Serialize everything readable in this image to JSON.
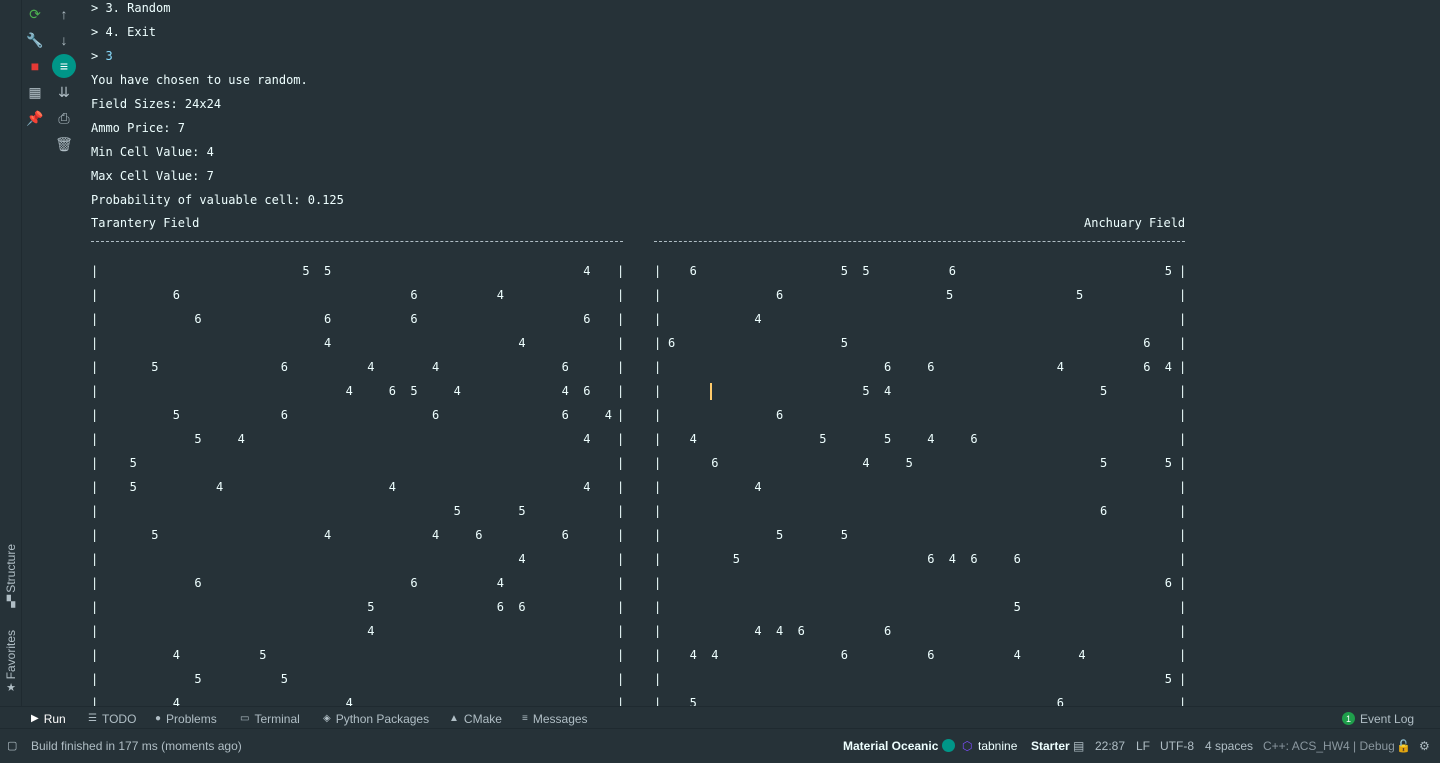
{
  "left_strip": {
    "structure_label": "Structure",
    "favorites_label": "Favorites",
    "favorites_icon": "star-icon"
  },
  "toolbar": {
    "col1": [
      {
        "name": "rerun-icon",
        "glyph": "⟳",
        "color": "#4caf50"
      },
      {
        "name": "wrench-icon",
        "glyph": "🔧",
        "color": "#b0bec5"
      },
      {
        "name": "stop-icon",
        "glyph": "■",
        "color": "#e53935"
      },
      {
        "name": "layout-icon",
        "glyph": "▦",
        "color": "#b0bec5"
      },
      {
        "name": "pin-icon",
        "glyph": "📌",
        "color": "#b0bec5"
      }
    ],
    "col2": [
      {
        "name": "arrow-up-icon",
        "glyph": "↑"
      },
      {
        "name": "arrow-down-icon",
        "glyph": "↓"
      },
      {
        "name": "soft-wrap-icon",
        "glyph": "≡",
        "active": true
      },
      {
        "name": "scroll-to-end-icon",
        "glyph": "⇊"
      },
      {
        "name": "print-icon",
        "glyph": "⎙"
      },
      {
        "name": "trash-icon",
        "glyph": "🗑"
      }
    ]
  },
  "console": {
    "lines": [
      {
        "text": "> 3. Random"
      },
      {
        "text": "> 4. Exit"
      },
      {
        "prompt": "> ",
        "input": "3"
      },
      {
        "text": "You have chosen to use random."
      },
      {
        "text": "Field Sizes: 24x24"
      },
      {
        "text": "Ammo Price: 7"
      },
      {
        "text": "Min Cell Value: 4"
      },
      {
        "text": "Max Cell Value: 7"
      },
      {
        "text": "Probability of valuable cell: 0.125"
      }
    ],
    "left_field_title": "Tarantery Field",
    "right_field_title": "Anchuary Field",
    "left_rows": [
      [
        "",
        "",
        "",
        "",
        "",
        "",
        "",
        "",
        "",
        "5",
        "5",
        "",
        "",
        "",
        "",
        "",
        "",
        "",
        "",
        "",
        "",
        "",
        "4",
        ""
      ],
      [
        "",
        "",
        "",
        "6",
        "",
        "",
        "",
        "",
        "",
        "",
        "",
        "",
        "",
        "",
        "6",
        "",
        "",
        "",
        "4",
        "",
        "",
        "",
        "",
        ""
      ],
      [
        "",
        "",
        "",
        "",
        "6",
        "",
        "",
        "",
        "",
        "",
        "6",
        "",
        "",
        "",
        "6",
        "",
        "",
        "",
        "",
        "",
        "",
        "",
        "6",
        ""
      ],
      [
        "",
        "",
        "",
        "",
        "",
        "",
        "",
        "",
        "",
        "",
        "4",
        "",
        "",
        "",
        "",
        "",
        "",
        "",
        "",
        "4",
        "",
        "",
        "",
        ""
      ],
      [
        "",
        "",
        "5",
        "",
        "",
        "",
        "",
        "",
        "6",
        "",
        "",
        "",
        "4",
        "",
        "",
        "4",
        "",
        "",
        "",
        "",
        "",
        "6",
        "",
        ""
      ],
      [
        "",
        "",
        "",
        "",
        "",
        "",
        "",
        "",
        "",
        "",
        "",
        "4",
        "",
        "6",
        "5",
        "",
        "4",
        "",
        "",
        "",
        "",
        "4",
        "6",
        ""
      ],
      [
        "",
        "",
        "",
        "5",
        "",
        "",
        "",
        "",
        "6",
        "",
        "",
        "",
        "",
        "",
        "",
        "6",
        "",
        "",
        "",
        "",
        "",
        "6",
        "",
        "4"
      ],
      [
        "",
        "",
        "",
        "",
        "5",
        "",
        "4",
        "",
        "",
        "",
        "",
        "",
        "",
        "",
        "",
        "",
        "",
        "",
        "",
        "",
        "",
        "",
        "4",
        ""
      ],
      [
        "",
        "5",
        "",
        "",
        "",
        "",
        "",
        "",
        "",
        "",
        "",
        "",
        "",
        "",
        "",
        "",
        "",
        "",
        "",
        "",
        "",
        "",
        "",
        ""
      ],
      [
        "",
        "5",
        "",
        "",
        "",
        "4",
        "",
        "",
        "",
        "",
        "",
        "",
        "",
        "4",
        "",
        "",
        "",
        "",
        "",
        "",
        "",
        "",
        "4",
        ""
      ],
      [
        "",
        "",
        "",
        "",
        "",
        "",
        "",
        "",
        "",
        "",
        "",
        "",
        "",
        "",
        "",
        "",
        "5",
        "",
        "",
        "5",
        "",
        "",
        "",
        ""
      ],
      [
        "",
        "",
        "5",
        "",
        "",
        "",
        "",
        "",
        "",
        "",
        "4",
        "",
        "",
        "",
        "",
        "4",
        "",
        "6",
        "",
        "",
        "",
        "6",
        "",
        ""
      ],
      [
        "",
        "",
        "",
        "",
        "",
        "",
        "",
        "",
        "",
        "",
        "",
        "",
        "",
        "",
        "",
        "",
        "",
        "",
        "",
        "4",
        "",
        "",
        "",
        ""
      ],
      [
        "",
        "",
        "",
        "",
        "6",
        "",
        "",
        "",
        "",
        "",
        "",
        "",
        "",
        "",
        "6",
        "",
        "",
        "",
        "4",
        "",
        "",
        "",
        "",
        ""
      ],
      [
        "",
        "",
        "",
        "",
        "",
        "",
        "",
        "",
        "",
        "",
        "",
        "",
        "5",
        "",
        "",
        "",
        "",
        "",
        "6",
        "6",
        "",
        "",
        "",
        ""
      ],
      [
        "",
        "",
        "",
        "",
        "",
        "",
        "",
        "",
        "",
        "",
        "",
        "",
        "4",
        "",
        "",
        "",
        "",
        "",
        "",
        "",
        "",
        "",
        "",
        ""
      ],
      [
        "",
        "",
        "",
        "4",
        "",
        "",
        "",
        "5",
        "",
        "",
        "",
        "",
        "",
        "",
        "",
        "",
        "",
        "",
        "",
        "",
        "",
        "",
        "",
        ""
      ],
      [
        "",
        "",
        "",
        "",
        "5",
        "",
        "",
        "",
        "5",
        "",
        "",
        "",
        "",
        "",
        "",
        "",
        "",
        "",
        "",
        "",
        "",
        "",
        "",
        ""
      ],
      [
        "",
        "",
        "",
        "4",
        "",
        "",
        "",
        "",
        "",
        "",
        "",
        "4",
        "",
        "",
        "",
        "",
        "",
        "",
        "",
        "",
        "",
        "",
        "",
        ""
      ]
    ],
    "right_rows": [
      [
        "",
        "6",
        "",
        "",
        "",
        "",
        "",
        "",
        "5",
        "5",
        "",
        "",
        "",
        "6",
        "",
        "",
        "",
        "",
        "",
        "",
        "",
        "",
        "",
        "5"
      ],
      [
        "",
        "",
        "",
        "",
        "",
        "6",
        "",
        "",
        "",
        "",
        "",
        "",
        "",
        "",
        "",
        "",
        "",
        "",
        "",
        "",
        "",
        "",
        "",
        ""
      ],
      [
        "",
        "",
        "",
        "",
        "4",
        "",
        "",
        "",
        "",
        "",
        "",
        "",
        "",
        "",
        "",
        "",
        "",
        "",
        "",
        "",
        "",
        "",
        "",
        ""
      ],
      [
        "6",
        "",
        "",
        "",
        "",
        "",
        "",
        "",
        "5",
        "",
        "",
        "",
        "",
        "",
        "",
        "",
        "",
        "",
        "",
        "",
        "",
        "",
        "6",
        ""
      ],
      [
        "",
        "",
        "",
        "",
        "",
        "",
        "",
        "",
        "",
        "",
        "6",
        "",
        "6",
        "",
        "",
        "",
        "",
        "",
        "4",
        "",
        "",
        "",
        "6",
        "4"
      ],
      [
        "",
        "",
        "",
        "",
        "",
        "",
        "",
        "",
        "",
        "5",
        "4",
        "",
        "",
        "",
        "",
        "",
        "",
        "",
        "",
        "",
        "5",
        "",
        "",
        ""
      ],
      [
        "",
        "",
        "",
        "",
        "",
        "6",
        "",
        "",
        "",
        "",
        "",
        "",
        "",
        "",
        "",
        "",
        "",
        "",
        "",
        "",
        "",
        "",
        "",
        ""
      ],
      [
        "",
        "4",
        "",
        "",
        "",
        "",
        "",
        "5",
        "",
        "",
        "5",
        "",
        "4",
        "",
        "6",
        "",
        "",
        "",
        "",
        "",
        "",
        "",
        "",
        ""
      ],
      [
        "",
        "",
        "6",
        "",
        "",
        "",
        "",
        "",
        "",
        "4",
        "",
        "5",
        "",
        "",
        "",
        "",
        "",
        "",
        "",
        "",
        "5",
        "",
        "",
        "5"
      ],
      [
        "",
        "",
        "",
        "",
        "4",
        "",
        "",
        "",
        "",
        "",
        "",
        "",
        "",
        "",
        "",
        "",
        "",
        "",
        "",
        "",
        "",
        "",
        "",
        ""
      ],
      [
        "",
        "",
        "",
        "",
        "",
        "",
        "",
        "",
        "",
        "",
        "",
        "",
        "",
        "",
        "",
        "",
        "",
        "",
        "",
        "",
        "6",
        "",
        "",
        ""
      ],
      [
        "",
        "",
        "",
        "",
        "",
        "5",
        "",
        "",
        "5",
        "",
        "",
        "",
        "",
        "",
        "",
        "",
        "",
        "",
        "",
        "",
        "",
        "",
        "",
        ""
      ],
      [
        "",
        "",
        "",
        "5",
        "",
        "",
        "",
        "",
        "",
        "",
        "",
        "",
        "6",
        "4",
        "6",
        "",
        "6",
        "",
        "",
        "",
        "",
        "",
        "",
        ""
      ],
      [
        "",
        "",
        "",
        "",
        "",
        "",
        "",
        "",
        "",
        "",
        "",
        "",
        "",
        "",
        "",
        "",
        "",
        "",
        "",
        "",
        "",
        "",
        "",
        "6"
      ],
      [
        "",
        "",
        "",
        "",
        "",
        "",
        "",
        "",
        "",
        "",
        "",
        "",
        "",
        "",
        "",
        "",
        "5",
        "",
        "",
        "",
        "",
        "",
        "",
        ""
      ],
      [
        "",
        "",
        "",
        "",
        "4",
        "4",
        "6",
        "",
        "",
        "",
        "6",
        "",
        "",
        "",
        "",
        "",
        "",
        "",
        "",
        "",
        "",
        "",
        "",
        ""
      ],
      [
        "",
        "4",
        "4",
        "",
        "",
        "",
        "",
        "",
        "6",
        "",
        "",
        "",
        "6",
        "",
        "",
        "",
        "4",
        "",
        "",
        "4",
        "",
        "",
        "",
        ""
      ],
      [
        "",
        "",
        "",
        "",
        "",
        "",
        "",
        "",
        "",
        "",
        "",
        "",
        "",
        "",
        "",
        "",
        "",
        "",
        "",
        "",
        "",
        "",
        "",
        "5"
      ],
      [
        "",
        "5",
        "",
        "",
        "",
        "",
        "",
        "",
        "",
        "",
        "",
        "",
        "",
        "",
        "",
        "",
        "",
        "",
        "6",
        "",
        "",
        "",
        "",
        ""
      ]
    ],
    "right_rows_extra": [
      {
        "row": 1,
        "col_chars": 11,
        "value": "5"
      },
      {
        "row": 1,
        "col_chars": 5,
        "value": "5"
      }
    ]
  },
  "bottom_tabs": [
    {
      "name": "tab-run",
      "icon": "▶",
      "label": "Run",
      "active": true
    },
    {
      "name": "tab-todo",
      "icon": "☰",
      "label": "TODO"
    },
    {
      "name": "tab-problems",
      "icon": "●",
      "label": "Problems"
    },
    {
      "name": "tab-terminal",
      "icon": "▭",
      "label": "Terminal"
    },
    {
      "name": "tab-python-packages",
      "icon": "◈",
      "label": "Python Packages"
    },
    {
      "name": "tab-cmake",
      "icon": "▲",
      "label": "CMake"
    },
    {
      "name": "tab-messages",
      "icon": "≡",
      "label": "Messages"
    }
  ],
  "event_log": {
    "label": "Event Log",
    "count": "1"
  },
  "status": {
    "message": "Build finished in 177 ms (moments ago)",
    "theme": "Material Oceanic",
    "tabnine": "tabnine",
    "tabnine_plan": "Starter",
    "position": "22:87",
    "line_sep": "LF",
    "encoding": "UTF-8",
    "indent": "4 spaces",
    "context": "C++: ACS_HW4 | Debug",
    "theme_color": "#009688",
    "accent": "#7c4dff"
  }
}
